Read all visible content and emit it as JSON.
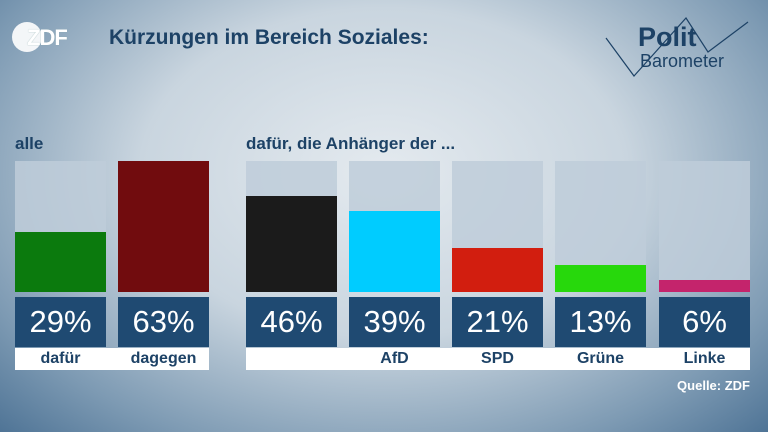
{
  "header": {
    "logo_text": "ZDF",
    "title": "Kürzungen im Bereich Soziales:",
    "brand_line1": "Polit",
    "brand_line2": "Barometer"
  },
  "labels": {
    "left": "alle",
    "right": "dafür, die Anhänger der ..."
  },
  "source": "Quelle: ZDF",
  "chart_data": {
    "type": "bar",
    "unit": "%",
    "groups": [
      {
        "name": "alle",
        "categories": [
          "dafür",
          "dagegen"
        ],
        "values": [
          29,
          63
        ],
        "value_labels": [
          "29%",
          "63%"
        ],
        "colors": [
          "#0b7a0d",
          "#710c0e"
        ]
      },
      {
        "name": "dafür, die Anhänger der ...",
        "categories": [
          "",
          "AfD",
          "SPD",
          "Grüne",
          "Linke"
        ],
        "values": [
          46,
          39,
          21,
          13,
          6
        ],
        "value_labels": [
          "46%",
          "39%",
          "21%",
          "13%",
          "6%"
        ],
        "colors": [
          "#1b1b1b",
          "#00ccff",
          "#d21e0f",
          "#27d80c",
          "#c4246c"
        ]
      }
    ],
    "ylim": [
      0,
      63
    ]
  }
}
